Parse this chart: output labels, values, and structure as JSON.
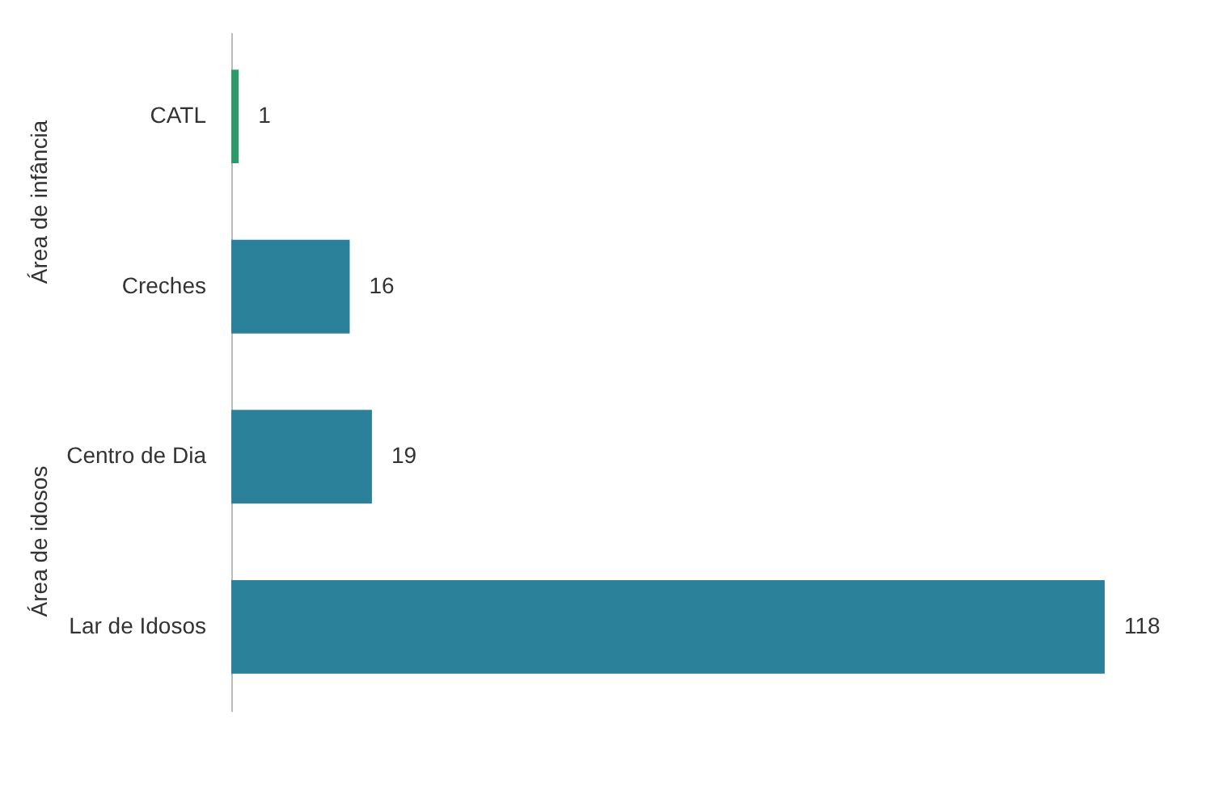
{
  "chart_data": {
    "type": "bar",
    "orientation": "horizontal",
    "categories": [
      "CATL",
      "Creches",
      "Centro de Dia",
      "Lar de Idosos"
    ],
    "values": [
      1,
      16,
      19,
      118
    ],
    "colors": [
      "#2e9a6a",
      "#2b8199",
      "#2b8199",
      "#2b8199"
    ],
    "data_labels": true,
    "legend": false,
    "annotations": [
      "Área de infância",
      "Área de idosos"
    ]
  }
}
